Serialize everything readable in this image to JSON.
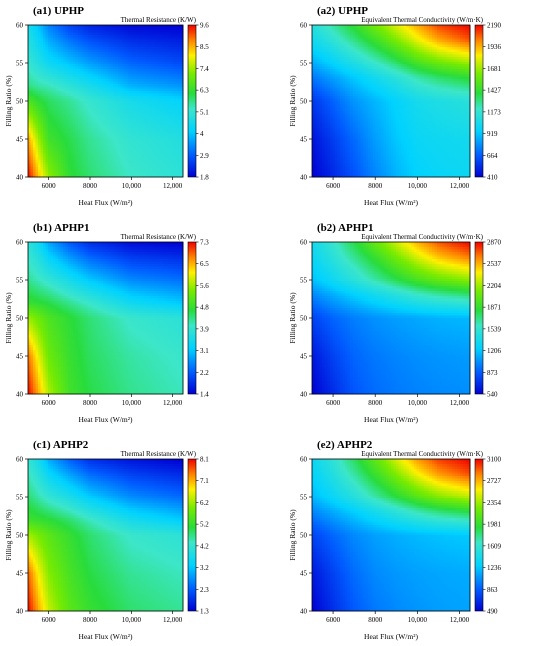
{
  "chart_data": [
    {
      "type": "heatmap",
      "title": "(a1) UPHP",
      "xlabel": "Heat Flux (W/m²)",
      "ylabel": "Filling Ratio (%)",
      "colorbar_label": "Thermal Resistance (K/W)",
      "colorbar_ticks": [
        "9.6",
        "8.5",
        "7.4",
        "6.3",
        "5.1",
        "4",
        "2.9",
        "1.8"
      ],
      "xlim": [
        5000,
        12500
      ],
      "ylim": [
        40,
        60
      ],
      "x_ticks": [
        {
          "v": 6000,
          "t": "6000"
        },
        {
          "v": 8000,
          "t": "8000"
        },
        {
          "v": 10000,
          "t": "10,000"
        },
        {
          "v": 12000,
          "t": "12,000"
        }
      ],
      "y_ticks": [
        {
          "v": 40,
          "t": "40"
        },
        {
          "v": 45,
          "t": "45"
        },
        {
          "v": 50,
          "t": "50"
        },
        {
          "v": 55,
          "t": "55"
        },
        {
          "v": 60,
          "t": "60"
        }
      ],
      "x": [
        5000,
        5500,
        6000,
        7000,
        8000,
        10000,
        12500
      ],
      "y": [
        40,
        45,
        50,
        52,
        55,
        60
      ],
      "z": [
        [
          9.6,
          8.4,
          7.3,
          6.2,
          5.8,
          5.3,
          5.0
        ],
        [
          8.6,
          7.4,
          6.4,
          6.0,
          5.6,
          5.1,
          4.8
        ],
        [
          6.6,
          6.2,
          5.9,
          5.6,
          5.2,
          4.6,
          4.2
        ],
        [
          5.7,
          5.5,
          5.4,
          5.0,
          4.6,
          3.8,
          3.5
        ],
        [
          5.2,
          4.8,
          4.4,
          4.0,
          3.6,
          3.0,
          2.7
        ],
        [
          4.6,
          4.0,
          3.3,
          2.6,
          2.2,
          1.9,
          1.8
        ]
      ]
    },
    {
      "type": "heatmap",
      "title": "(a2) UPHP",
      "xlabel": "Heat Flux (W/m²)",
      "ylabel": "Filling Ratio (%)",
      "colorbar_label": "Equivalent Thermal Conductivity (W/m·K)",
      "colorbar_ticks": [
        "2190",
        "1936",
        "1681",
        "1427",
        "1173",
        "919",
        "664",
        "410"
      ],
      "xlim": [
        5000,
        12500
      ],
      "ylim": [
        40,
        60
      ],
      "x_ticks": [
        {
          "v": 6000,
          "t": "6000"
        },
        {
          "v": 8000,
          "t": "8000"
        },
        {
          "v": 10000,
          "t": "10,000"
        },
        {
          "v": 12000,
          "t": "12,000"
        }
      ],
      "y_ticks": [
        {
          "v": 40,
          "t": "40"
        },
        {
          "v": 45,
          "t": "45"
        },
        {
          "v": 50,
          "t": "50"
        },
        {
          "v": 55,
          "t": "55"
        },
        {
          "v": 60,
          "t": "60"
        }
      ],
      "x": [
        5000,
        6000,
        7000,
        8000,
        9000,
        10000,
        11000,
        12500
      ],
      "y": [
        40,
        45,
        50,
        53,
        55,
        58,
        60
      ],
      "z": [
        [
          410,
          520,
          640,
          760,
          870,
          950,
          980,
          1000
        ],
        [
          460,
          580,
          700,
          820,
          920,
          990,
          1010,
          1030
        ],
        [
          560,
          680,
          800,
          880,
          960,
          1040,
          1080,
          1120
        ],
        [
          720,
          820,
          920,
          1020,
          1120,
          1240,
          1320,
          1400
        ],
        [
          850,
          960,
          1080,
          1200,
          1330,
          1480,
          1580,
          1680
        ],
        [
          1020,
          1150,
          1300,
          1450,
          1620,
          1800,
          1950,
          2080
        ],
        [
          1100,
          1260,
          1420,
          1600,
          1780,
          1950,
          2100,
          2190
        ]
      ]
    },
    {
      "type": "heatmap",
      "title": "(b1) APHP1",
      "xlabel": "Heat Flux (W/m²)",
      "ylabel": "Filling Ratio (%)",
      "colorbar_label": "Thermal Resistance (K/W)",
      "colorbar_ticks": [
        "7.3",
        "6.5",
        "5.6",
        "4.8",
        "3.9",
        "3.1",
        "2.2",
        "1.4"
      ],
      "xlim": [
        5000,
        12500
      ],
      "ylim": [
        40,
        60
      ],
      "x_ticks": [
        {
          "v": 6000,
          "t": "6000"
        },
        {
          "v": 8000,
          "t": "8000"
        },
        {
          "v": 10000,
          "t": "10,000"
        },
        {
          "v": 12000,
          "t": "12,000"
        }
      ],
      "y_ticks": [
        {
          "v": 40,
          "t": "40"
        },
        {
          "v": 45,
          "t": "45"
        },
        {
          "v": 50,
          "t": "50"
        },
        {
          "v": 55,
          "t": "55"
        },
        {
          "v": 60,
          "t": "60"
        }
      ],
      "x": [
        5000,
        5500,
        6000,
        7000,
        8000,
        10000,
        12500
      ],
      "y": [
        40,
        45,
        50,
        52,
        55,
        60
      ],
      "z": [
        [
          7.3,
          6.5,
          5.7,
          4.9,
          4.6,
          4.3,
          4.1
        ],
        [
          6.8,
          6.0,
          5.3,
          4.8,
          4.5,
          4.2,
          4.0
        ],
        [
          5.6,
          5.3,
          5.0,
          4.7,
          4.4,
          4.0,
          3.8
        ],
        [
          4.8,
          4.7,
          4.6,
          4.3,
          4.0,
          3.4,
          3.1
        ],
        [
          4.3,
          4.1,
          3.9,
          3.5,
          3.1,
          2.6,
          2.4
        ],
        [
          3.8,
          3.4,
          2.8,
          2.2,
          1.8,
          1.5,
          1.4
        ]
      ]
    },
    {
      "type": "heatmap",
      "title": "(b2) APHP1",
      "xlabel": "Heat Flux (W/m²)",
      "ylabel": "Filling Ratio (%)",
      "colorbar_label": "Equivalent Thermal Conductivity (W/m·K)",
      "colorbar_ticks": [
        "2870",
        "2537",
        "2204",
        "1871",
        "1539",
        "1206",
        "873",
        "540"
      ],
      "xlim": [
        5000,
        12500
      ],
      "ylim": [
        40,
        60
      ],
      "x_ticks": [
        {
          "v": 6000,
          "t": "6000"
        },
        {
          "v": 8000,
          "t": "8000"
        },
        {
          "v": 10000,
          "t": "10,000"
        },
        {
          "v": 12000,
          "t": "12,000"
        }
      ],
      "y_ticks": [
        {
          "v": 40,
          "t": "40"
        },
        {
          "v": 45,
          "t": "45"
        },
        {
          "v": 50,
          "t": "50"
        },
        {
          "v": 55,
          "t": "55"
        },
        {
          "v": 60,
          "t": "60"
        }
      ],
      "x": [
        5000,
        6000,
        7000,
        8000,
        9000,
        10000,
        11000,
        12500
      ],
      "y": [
        40,
        45,
        50,
        53,
        55,
        58,
        60
      ],
      "z": [
        [
          540,
          700,
          850,
          920,
          960,
          990,
          1010,
          1030
        ],
        [
          620,
          780,
          900,
          960,
          1000,
          1030,
          1050,
          1070
        ],
        [
          780,
          900,
          980,
          1040,
          1080,
          1110,
          1140,
          1160
        ],
        [
          1000,
          1120,
          1230,
          1340,
          1450,
          1560,
          1640,
          1720
        ],
        [
          1180,
          1330,
          1480,
          1640,
          1790,
          1940,
          2050,
          2160
        ],
        [
          1300,
          1480,
          1680,
          1880,
          2100,
          2320,
          2500,
          2650
        ],
        [
          1350,
          1560,
          1800,
          2050,
          2300,
          2540,
          2720,
          2870
        ]
      ]
    },
    {
      "type": "heatmap",
      "title": "(c1) APHP2",
      "xlabel": "Heat Flux (W/m²)",
      "ylabel": "Filling Ratio (%)",
      "colorbar_label": "Thermal Resistance (K/W)",
      "colorbar_ticks": [
        "8.1",
        "7.1",
        "6.2",
        "5.2",
        "4.2",
        "3.2",
        "2.3",
        "1.3"
      ],
      "xlim": [
        5000,
        12500
      ],
      "ylim": [
        40,
        60
      ],
      "x_ticks": [
        {
          "v": 6000,
          "t": "6000"
        },
        {
          "v": 8000,
          "t": "8000"
        },
        {
          "v": 10000,
          "t": "10,000"
        },
        {
          "v": 12000,
          "t": "12,000"
        }
      ],
      "y_ticks": [
        {
          "v": 40,
          "t": "40"
        },
        {
          "v": 45,
          "t": "45"
        },
        {
          "v": 50,
          "t": "50"
        },
        {
          "v": 55,
          "t": "55"
        },
        {
          "v": 60,
          "t": "60"
        }
      ],
      "x": [
        5000,
        5500,
        6000,
        7000,
        8000,
        10000,
        12500
      ],
      "y": [
        40,
        45,
        50,
        52,
        55,
        60
      ],
      "z": [
        [
          8.1,
          7.2,
          6.4,
          5.6,
          5.2,
          4.8,
          4.6
        ],
        [
          7.6,
          6.7,
          6.0,
          5.4,
          5.0,
          4.6,
          4.4
        ],
        [
          6.2,
          5.9,
          5.6,
          5.2,
          4.8,
          4.3,
          4.1
        ],
        [
          5.3,
          5.2,
          5.1,
          4.8,
          4.4,
          3.7,
          3.3
        ],
        [
          4.8,
          4.5,
          4.2,
          3.8,
          3.3,
          2.7,
          2.4
        ],
        [
          4.2,
          3.7,
          3.0,
          2.3,
          1.8,
          1.5,
          1.3
        ]
      ]
    },
    {
      "type": "heatmap",
      "title": "(e2) APHP2",
      "xlabel": "Heat Flux (W/m²)",
      "ylabel": "Filling Ratio (%)",
      "colorbar_label": "Equivalent Thermal Conductivity (W/m·K)",
      "colorbar_ticks": [
        "3100",
        "2727",
        "2354",
        "1981",
        "1609",
        "1236",
        "863",
        "490"
      ],
      "xlim": [
        5000,
        12500
      ],
      "ylim": [
        40,
        60
      ],
      "x_ticks": [
        {
          "v": 6000,
          "t": "6000"
        },
        {
          "v": 8000,
          "t": "8000"
        },
        {
          "v": 10000,
          "t": "10,000"
        },
        {
          "v": 12000,
          "t": "12,000"
        }
      ],
      "y_ticks": [
        {
          "v": 40,
          "t": "40"
        },
        {
          "v": 45,
          "t": "45"
        },
        {
          "v": 50,
          "t": "50"
        },
        {
          "v": 55,
          "t": "55"
        },
        {
          "v": 60,
          "t": "60"
        }
      ],
      "x": [
        5000,
        6000,
        7000,
        8000,
        9000,
        10000,
        11000,
        12500
      ],
      "y": [
        40,
        45,
        50,
        53,
        55,
        58,
        60
      ],
      "z": [
        [
          490,
          680,
          850,
          960,
          1020,
          1060,
          1090,
          1110
        ],
        [
          580,
          760,
          920,
          1020,
          1070,
          1100,
          1120,
          1140
        ],
        [
          760,
          900,
          1020,
          1100,
          1150,
          1190,
          1220,
          1250
        ],
        [
          1000,
          1130,
          1260,
          1400,
          1540,
          1690,
          1800,
          1900
        ],
        [
          1180,
          1340,
          1520,
          1720,
          1920,
          2120,
          2280,
          2420
        ],
        [
          1300,
          1500,
          1740,
          2000,
          2280,
          2560,
          2780,
          2950
        ],
        [
          1350,
          1580,
          1860,
          2160,
          2480,
          2780,
          2980,
          3100
        ]
      ]
    }
  ]
}
